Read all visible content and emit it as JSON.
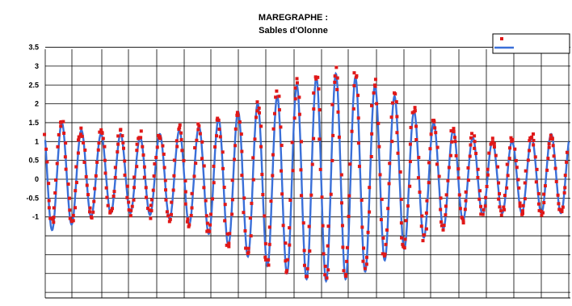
{
  "chart_data": {
    "type": "line",
    "title": "MAREGRAPHE :",
    "subtitle": "Sables d'Olonne",
    "ylabel": "",
    "xlabel": "",
    "ylim": [
      -2.8,
      3.5
    ],
    "y_tick_labels": [
      "3.5",
      "3",
      "2.5",
      "2",
      "1.5",
      "1",
      "0.5",
      "0",
      "-0.5",
      "-1"
    ],
    "grid": true,
    "legend_position": "top-right",
    "colors": {
      "observed": "#e01818",
      "predicted": "#3a6fd8"
    },
    "series": [
      {
        "style": "markers",
        "peaks": [
          1.8,
          1.6,
          1.3,
          1.3,
          1.3,
          1.2,
          1.2,
          1.4,
          1.4,
          1.6,
          1.8,
          2.0,
          2.3,
          2.6,
          2.8,
          2.9,
          2.8,
          2.6,
          2.3,
          1.9,
          1.6,
          1.3,
          1.2,
          1.1,
          1.1,
          1.2,
          1.2
        ],
        "troughs": [
          -1.1,
          -1.2,
          -1.0,
          -0.9,
          -0.9,
          -0.9,
          -1.0,
          -1.1,
          -1.3,
          -1.6,
          -1.9,
          -2.1,
          -2.4,
          -2.5,
          -2.6,
          -2.6,
          -2.5,
          -2.2,
          -2.0,
          -1.7,
          -1.4,
          -1.2,
          -1.0,
          -0.9,
          -0.9,
          -0.9,
          -0.9
        ]
      },
      {
        "style": "line",
        "peaks": [
          1.7,
          1.5,
          1.3,
          1.2,
          1.2,
          1.1,
          1.2,
          1.3,
          1.4,
          1.6,
          1.8,
          2.0,
          2.2,
          2.5,
          2.7,
          2.8,
          2.7,
          2.5,
          2.2,
          1.8,
          1.5,
          1.3,
          1.1,
          1.0,
          1.0,
          1.1,
          1.2
        ],
        "troughs": [
          -1.4,
          -1.3,
          -1.1,
          -0.9,
          -0.9,
          -0.9,
          -1.0,
          -1.1,
          -1.3,
          -1.6,
          -1.9,
          -2.2,
          -2.4,
          -2.6,
          -2.7,
          -2.7,
          -2.6,
          -2.3,
          -2.0,
          -1.7,
          -1.4,
          -1.2,
          -1.0,
          -0.9,
          -0.9,
          -0.9,
          -0.9
        ]
      }
    ]
  }
}
